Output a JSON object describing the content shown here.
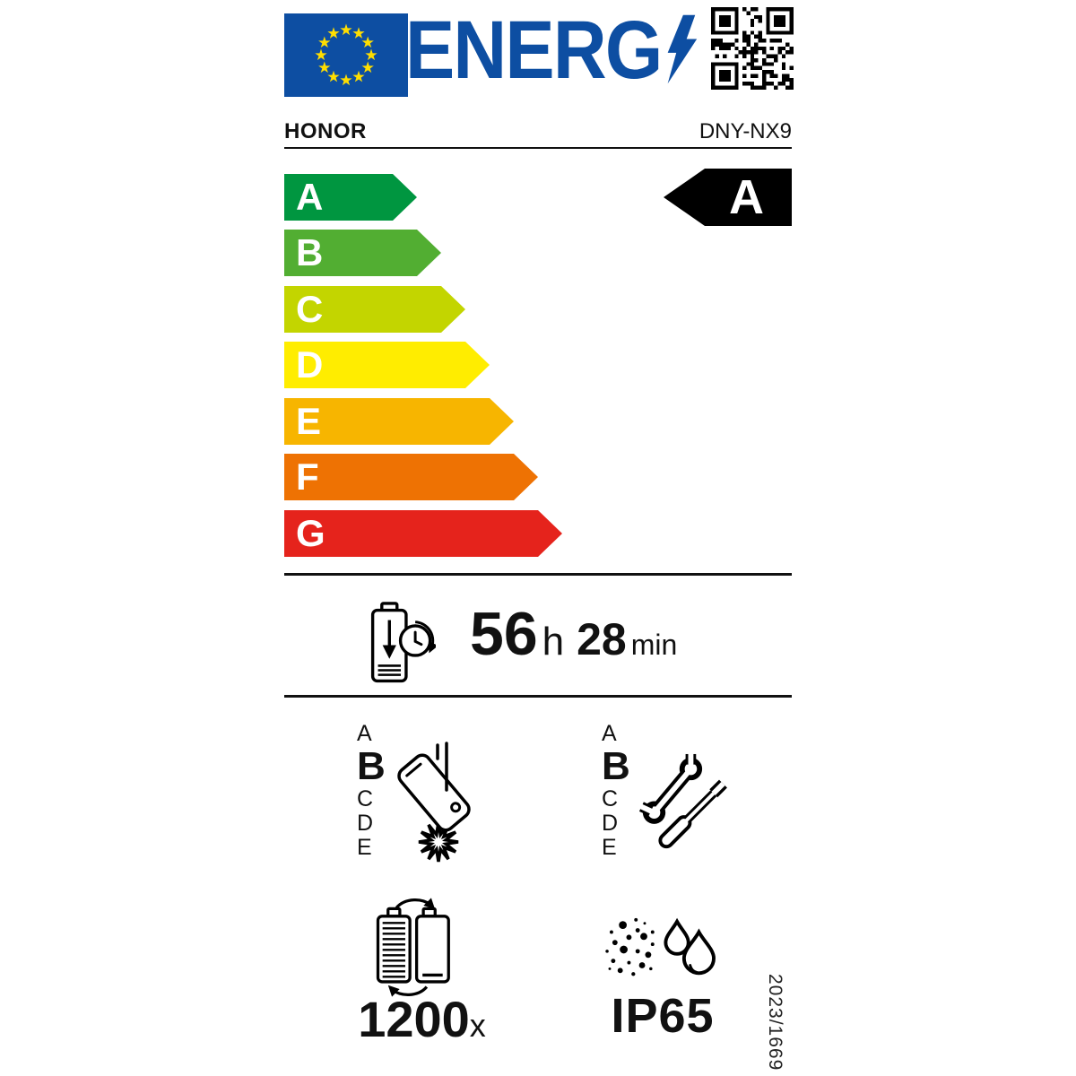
{
  "header": {
    "energy_logo_text": "ENERG",
    "brand": "HONOR",
    "model": "DNY-NX9"
  },
  "colors": {
    "eu_blue": "#0D4EA2",
    "star_yellow": "#FFDE00",
    "rated_arrow_bg": "#000000"
  },
  "scale": {
    "classes": [
      {
        "letter": "A",
        "color": "#009640"
      },
      {
        "letter": "B",
        "color": "#52AE32"
      },
      {
        "letter": "C",
        "color": "#C3D500"
      },
      {
        "letter": "D",
        "color": "#FFED00"
      },
      {
        "letter": "E",
        "color": "#F7B500"
      },
      {
        "letter": "F",
        "color": "#EE7203"
      },
      {
        "letter": "G",
        "color": "#E5231C"
      }
    ],
    "rated_class": "A"
  },
  "battery_life": {
    "hours": "56",
    "hours_unit": "h",
    "minutes": "28",
    "minutes_unit": "min"
  },
  "drop_resistance": {
    "grades": [
      "A",
      "B",
      "C",
      "D",
      "E"
    ],
    "rated": "B"
  },
  "repairability": {
    "grades": [
      "A",
      "B",
      "C",
      "D",
      "E"
    ],
    "rated": "B"
  },
  "battery_endurance": {
    "cycles": "1200",
    "unit": "x"
  },
  "ingress_protection": {
    "rating": "IP65"
  },
  "regulation_number": "2023/1669"
}
